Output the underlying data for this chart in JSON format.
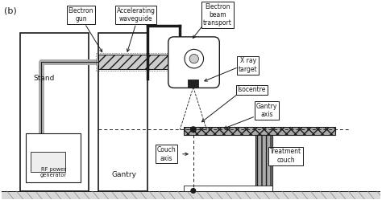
{
  "bg_color": "#ffffff",
  "figure_bg": "#ffffff",
  "title_label": "(b)",
  "labels": {
    "electron_gun": "Electron\ngun",
    "accelerating_waveguide": "Accelerating\nwaveguide",
    "electron_beam_transport": "Electron\nbeam\ntransport",
    "x_ray_target": "X ray\ntarget",
    "isocentre": "Isocentre",
    "gantry_axis": "Gantry\naxis",
    "stand": "Stand",
    "gantry": "Gantry",
    "rf_power": "RF power\ngenerator",
    "couch_axis": "Couch\naxis",
    "treatment_couch": "Treatment\ncouch"
  },
  "line_color": "#1a1a1a",
  "box_color": "#ffffff"
}
